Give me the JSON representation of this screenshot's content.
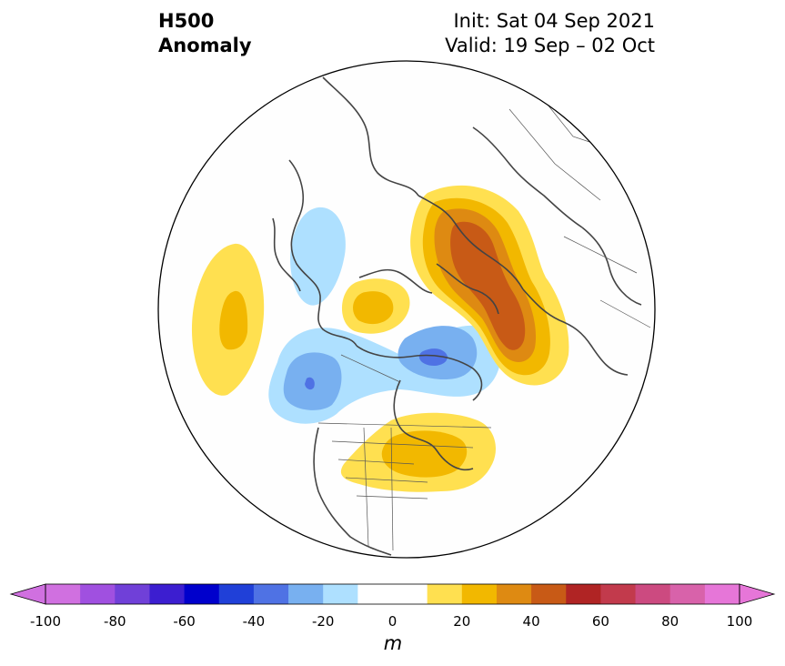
{
  "title": {
    "left_line1": "H500",
    "left_line2": "Anomaly",
    "init": "Init: Sat 04 Sep 2021",
    "valid": "Valid: 19 Sep – 02 Oct"
  },
  "colorbar": {
    "unit": "m",
    "ticks": [
      "-100",
      "-80",
      "-60",
      "-40",
      "-20",
      "0",
      "20",
      "40",
      "60",
      "80",
      "100"
    ],
    "levels": [
      -100,
      -90,
      -80,
      -70,
      -60,
      -50,
      -40,
      -30,
      -20,
      -10,
      10,
      20,
      30,
      40,
      50,
      60,
      70,
      80,
      90,
      100
    ],
    "colors": [
      "#d070e0",
      "#a050e0",
      "#7040d8",
      "#3c1ed0",
      "#0000cc",
      "#2040d8",
      "#4f72e4",
      "#78b0f0",
      "#aee0ff",
      "#ffffff",
      "#ffffff",
      "#ffe050",
      "#f2b800",
      "#de8a12",
      "#c85a16",
      "#b02424",
      "#c23a4c",
      "#cc4a80",
      "#d862aa",
      "#e676d8"
    ],
    "extend_min_color": "#d070e0",
    "extend_max_color": "#e676d8"
  },
  "anomaly_colors": {
    "pos10": "#ffe050",
    "pos20": "#f2b800",
    "pos30": "#de8a12",
    "pos40": "#c85a16",
    "neg10": "#aee0ff",
    "neg20": "#78b0f0",
    "neg30": "#4f72e4"
  }
}
